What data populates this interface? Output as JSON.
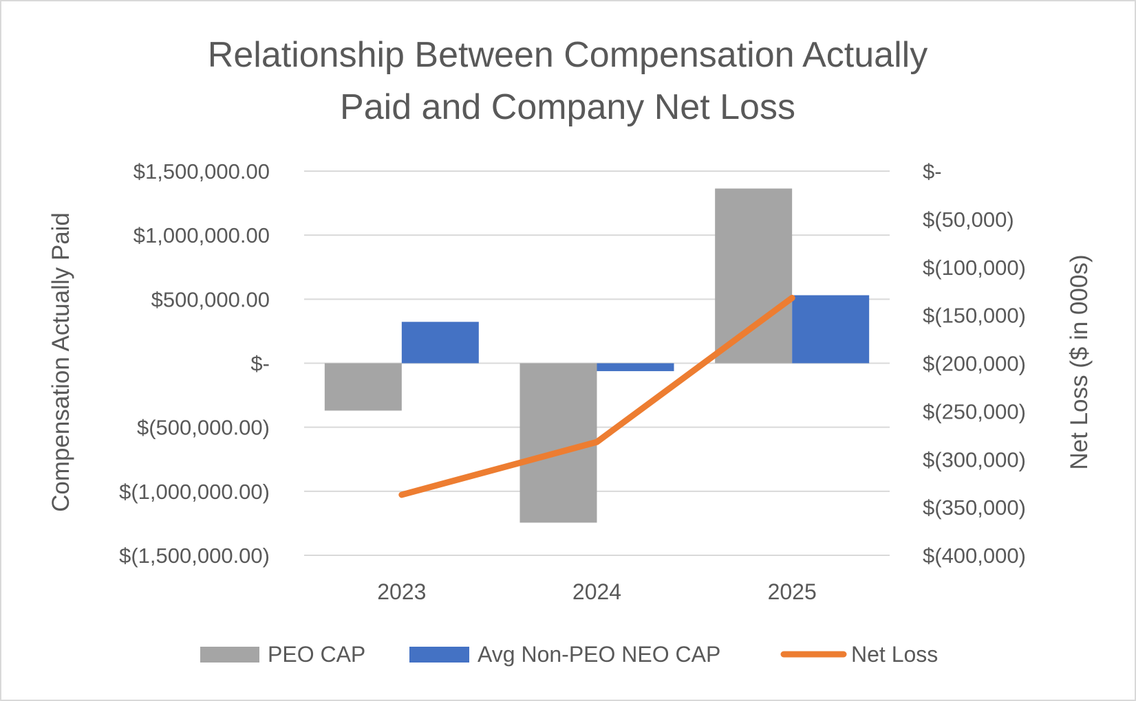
{
  "chart_data": {
    "type": "bar",
    "title_lines": [
      "Relationship Between Compensation Actually",
      "Paid and Company Net Loss"
    ],
    "categories": [
      "2023",
      "2024",
      "2025"
    ],
    "ylabel": "Compensation Actually Paid",
    "y2label": "Net Loss ($ in 000s)",
    "ylim": [
      -1500000,
      1500000
    ],
    "y2lim": [
      -400000,
      0
    ],
    "yticks": [
      1500000,
      1000000,
      500000,
      0,
      -500000,
      -1000000,
      -1500000
    ],
    "ytick_labels": [
      "$1,500,000.00",
      "$1,000,000.00",
      "$500,000.00",
      "$-",
      "$(500,000.00)",
      "$(1,000,000.00)",
      "$(1,500,000.00)"
    ],
    "y2ticks": [
      0,
      -50000,
      -100000,
      -150000,
      -200000,
      -250000,
      -300000,
      -350000,
      -400000
    ],
    "y2tick_labels": [
      "$-",
      "$(50,000)",
      "$(100,000)",
      "$(150,000)",
      "$(200,000)",
      "$(250,000)",
      "$(300,000)",
      "$(350,000)",
      "$(400,000)"
    ],
    "grid": true,
    "legend_position": "bottom",
    "series": [
      {
        "name": "PEO CAP",
        "type": "bar",
        "axis": "left",
        "color": "#a5a5a5",
        "values": [
          -370000,
          -1245000,
          1364000
        ]
      },
      {
        "name": "Avg Non-PEO NEO CAP",
        "type": "bar",
        "axis": "left",
        "color": "#4472c4",
        "values": [
          323000,
          -62000,
          531000
        ]
      },
      {
        "name": "Net Loss",
        "type": "line",
        "axis": "right",
        "color": "#ed7d31",
        "values": [
          -337000,
          -282000,
          -132000
        ]
      }
    ]
  }
}
